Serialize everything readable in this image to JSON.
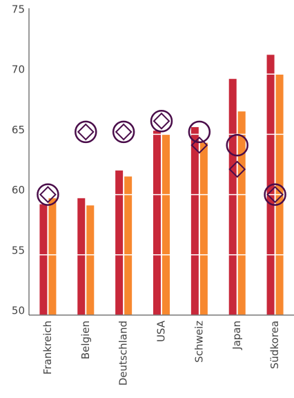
{
  "chart_data": {
    "type": "bar",
    "categories": [
      "Frankreich",
      "Belgien",
      "Deutschland",
      "USA",
      "Schweiz",
      "Japan",
      "Südkorea"
    ],
    "series": [
      {
        "color": "#c8283a",
        "values": [
          59.2,
          59.7,
          62.0,
          65.3,
          65.6,
          69.6,
          71.6
        ]
      },
      {
        "color": "#f7882f",
        "values": [
          59.7,
          59.1,
          61.5,
          65.0,
          64.3,
          66.9,
          70.0
        ]
      },
      {
        "color": "#4a0d4a",
        "marker": "circle",
        "values": [
          60.0,
          65.2,
          65.2,
          66.1,
          65.2,
          64.1,
          60.0
        ]
      },
      {
        "color": "#4a0d4a",
        "marker": "diamond",
        "values": [
          60.0,
          65.2,
          65.2,
          66.1,
          64.1,
          62.1,
          60.0
        ]
      }
    ],
    "ylim": [
      50,
      75
    ],
    "yticks": [
      50,
      55,
      60,
      65,
      70,
      75
    ],
    "grid": true
  }
}
